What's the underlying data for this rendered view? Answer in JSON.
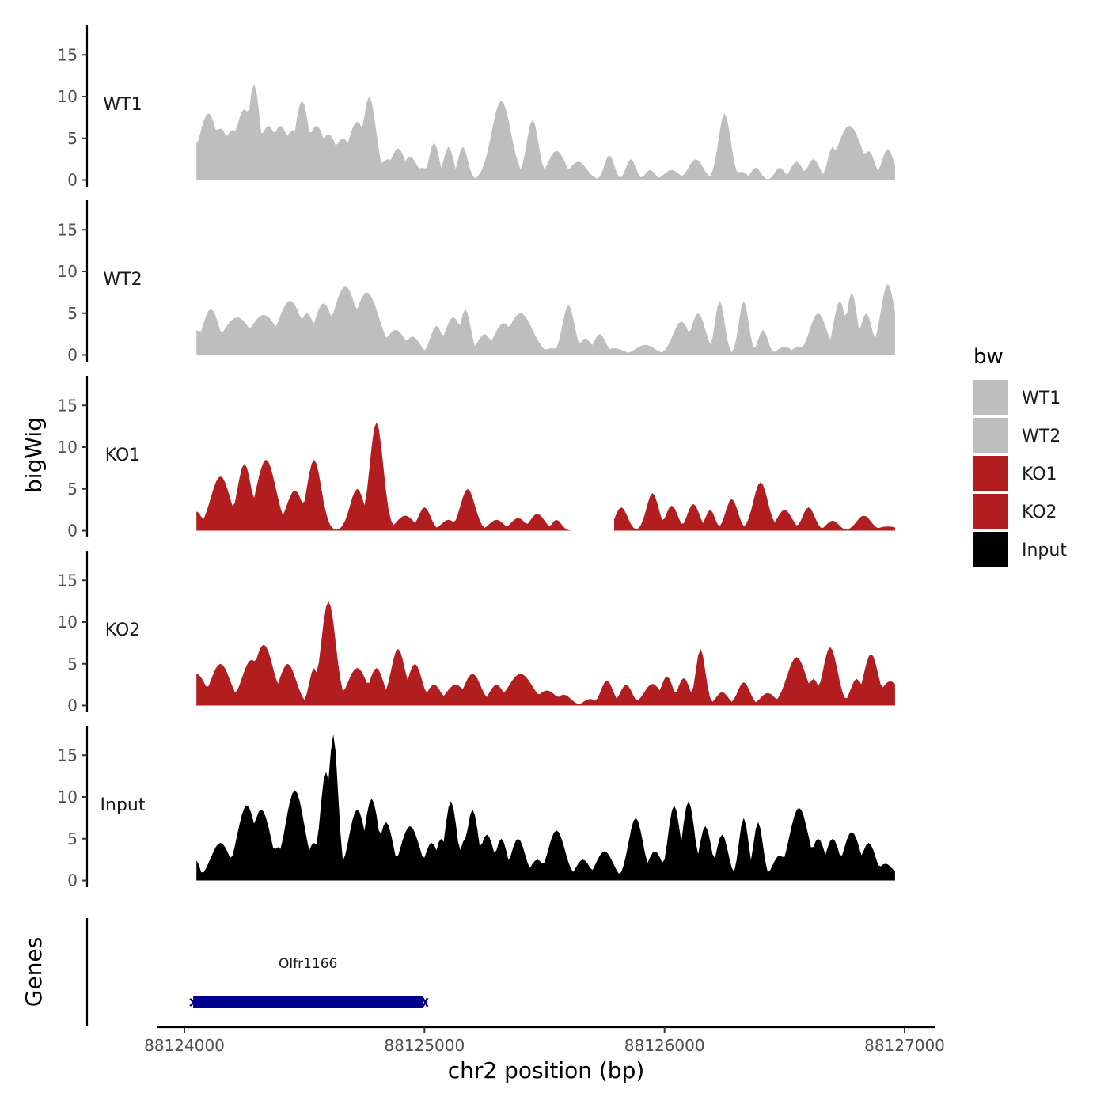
{
  "chart_data": {
    "type": "area",
    "title": "",
    "xlabel": "chr2 position (bp)",
    "ylabel": "bigWig",
    "genes_label": "Genes",
    "legend_title": "bw",
    "xlim": [
      88123890,
      88127000
    ],
    "ylim": [
      0,
      18
    ],
    "x_ticks": [
      88124000,
      88125000,
      88126000,
      88127000
    ],
    "x_tick_labels": [
      "88124000",
      "88125000",
      "88126000",
      "88127000"
    ],
    "y_ticks": [
      0,
      5,
      10,
      15
    ],
    "y_tick_labels": [
      "0",
      "5",
      "10",
      "15"
    ],
    "x_start": 88124050,
    "x_end": 88126960,
    "step": 10,
    "tracks": [
      {
        "name": "WT1",
        "color": "#bebebe",
        "peaks": [
          [
            88124050,
            4.4,
            40
          ],
          [
            88124100,
            8,
            40
          ],
          [
            88124150,
            6.2,
            40
          ],
          [
            88124200,
            6,
            40
          ],
          [
            88124250,
            8.5,
            40
          ],
          [
            88124290,
            11.5,
            25
          ],
          [
            88124350,
            6.5,
            40
          ],
          [
            88124400,
            6.5,
            40
          ],
          [
            88124450,
            6,
            40
          ],
          [
            88124490,
            9.5,
            30
          ],
          [
            88124550,
            6.5,
            40
          ],
          [
            88124600,
            5.5,
            40
          ],
          [
            88124660,
            5,
            40
          ],
          [
            88124720,
            7,
            40
          ],
          [
            88124770,
            10,
            28
          ],
          [
            88124850,
            2.5,
            40
          ],
          [
            88124890,
            3.8,
            30
          ],
          [
            88124940,
            2.8,
            30
          ],
          [
            88124990,
            1.5,
            25
          ],
          [
            88125040,
            4.5,
            20
          ],
          [
            88125100,
            4,
            20
          ],
          [
            88125160,
            4,
            20
          ],
          [
            88125320,
            9.5,
            40
          ],
          [
            88125450,
            7.2,
            25
          ],
          [
            88125550,
            3.5,
            35
          ],
          [
            88125640,
            2.2,
            35
          ],
          [
            88125770,
            3,
            20
          ],
          [
            88125860,
            2.5,
            20
          ],
          [
            88125940,
            1.2,
            20
          ],
          [
            88126030,
            1.2,
            30
          ],
          [
            88126130,
            2.5,
            30
          ],
          [
            88126250,
            8,
            25
          ],
          [
            88126320,
            1,
            25
          ],
          [
            88126380,
            1.5,
            20
          ],
          [
            88126480,
            1.5,
            20
          ],
          [
            88126550,
            2.2,
            25
          ],
          [
            88126620,
            2.5,
            25
          ],
          [
            88126700,
            4,
            20
          ],
          [
            88126770,
            6.5,
            50
          ],
          [
            88126850,
            3.5,
            25
          ],
          [
            88126930,
            3.7,
            25
          ]
        ]
      },
      {
        "name": "WT2",
        "color": "#bebebe",
        "peaks": [
          [
            88124050,
            3,
            30
          ],
          [
            88124110,
            5.5,
            35
          ],
          [
            88124220,
            4.5,
            60
          ],
          [
            88124330,
            4.8,
            60
          ],
          [
            88124440,
            6.5,
            50
          ],
          [
            88124510,
            5,
            35
          ],
          [
            88124580,
            6.2,
            40
          ],
          [
            88124670,
            8.2,
            50
          ],
          [
            88124760,
            7.5,
            50
          ],
          [
            88124880,
            3,
            40
          ],
          [
            88124950,
            2.2,
            30
          ],
          [
            88125050,
            3.5,
            25
          ],
          [
            88125120,
            4.5,
            35
          ],
          [
            88125170,
            5.5,
            22
          ],
          [
            88125250,
            2.5,
            30
          ],
          [
            88125330,
            3.8,
            40
          ],
          [
            88125400,
            5,
            50
          ],
          [
            88125530,
            0.8,
            35
          ],
          [
            88125600,
            6,
            25
          ],
          [
            88125670,
            2,
            25
          ],
          [
            88125730,
            2.5,
            25
          ],
          [
            88125790,
            0.8,
            40
          ],
          [
            88125920,
            1.2,
            40
          ],
          [
            88126070,
            4,
            35
          ],
          [
            88126140,
            5,
            30
          ],
          [
            88126230,
            6.5,
            20
          ],
          [
            88126330,
            6.5,
            20
          ],
          [
            88126410,
            3,
            20
          ],
          [
            88126500,
            1,
            30
          ],
          [
            88126560,
            1,
            30
          ],
          [
            88126640,
            5,
            35
          ],
          [
            88126730,
            6.5,
            25
          ],
          [
            88126780,
            7.5,
            22
          ],
          [
            88126840,
            5,
            25
          ],
          [
            88126930,
            8.5,
            30
          ]
        ]
      },
      {
        "name": "KO1",
        "color": "#b21d1f",
        "gap": [
          88125610,
          88125790
        ],
        "peaks": [
          [
            88124050,
            2.3,
            25
          ],
          [
            88124150,
            6.5,
            40
          ],
          [
            88124250,
            8,
            30
          ],
          [
            88124340,
            8.5,
            40
          ],
          [
            88124460,
            4.8,
            35
          ],
          [
            88124540,
            8.5,
            30
          ],
          [
            88124720,
            5,
            30
          ],
          [
            88124800,
            13,
            28
          ],
          [
            88124920,
            1.8,
            35
          ],
          [
            88125000,
            2.8,
            25
          ],
          [
            88125100,
            1.3,
            30
          ],
          [
            88125180,
            5,
            30
          ],
          [
            88125300,
            1.3,
            30
          ],
          [
            88125390,
            1.5,
            30
          ],
          [
            88125470,
            2,
            30
          ],
          [
            88125550,
            1.3,
            20
          ],
          [
            88125820,
            2.8,
            25
          ],
          [
            88125950,
            4.5,
            25
          ],
          [
            88126030,
            3,
            25
          ],
          [
            88126120,
            3.2,
            25
          ],
          [
            88126190,
            2.5,
            20
          ],
          [
            88126280,
            3.8,
            25
          ],
          [
            88126400,
            5.8,
            30
          ],
          [
            88126500,
            2.5,
            30
          ],
          [
            88126600,
            2.8,
            25
          ],
          [
            88126700,
            1.2,
            25
          ],
          [
            88126830,
            1.8,
            30
          ],
          [
            88126930,
            0.5,
            40
          ]
        ]
      },
      {
        "name": "KO2",
        "color": "#b21d1f",
        "peaks": [
          [
            88124050,
            3.8,
            40
          ],
          [
            88124150,
            5,
            40
          ],
          [
            88124280,
            5.5,
            40
          ],
          [
            88124330,
            7.3,
            40
          ],
          [
            88124430,
            5,
            35
          ],
          [
            88124540,
            4.5,
            20
          ],
          [
            88124600,
            12.5,
            30
          ],
          [
            88124720,
            4.5,
            40
          ],
          [
            88124800,
            4.5,
            30
          ],
          [
            88124890,
            6.8,
            30
          ],
          [
            88124960,
            5,
            30
          ],
          [
            88125040,
            2.5,
            30
          ],
          [
            88125130,
            2.5,
            40
          ],
          [
            88125200,
            3.8,
            35
          ],
          [
            88125300,
            2.5,
            30
          ],
          [
            88125400,
            3.8,
            50
          ],
          [
            88125510,
            1.8,
            40
          ],
          [
            88125580,
            1.3,
            30
          ],
          [
            88125690,
            0.8,
            25
          ],
          [
            88125760,
            3,
            25
          ],
          [
            88125840,
            2.5,
            25
          ],
          [
            88125950,
            2.6,
            35
          ],
          [
            88126010,
            3.5,
            25
          ],
          [
            88126080,
            3.3,
            25
          ],
          [
            88126150,
            6.8,
            20
          ],
          [
            88126240,
            1.6,
            25
          ],
          [
            88126330,
            2.8,
            25
          ],
          [
            88126430,
            1.5,
            30
          ],
          [
            88126550,
            5.8,
            40
          ],
          [
            88126620,
            3.2,
            25
          ],
          [
            88126690,
            7,
            30
          ],
          [
            88126800,
            3.2,
            25
          ],
          [
            88126860,
            6.2,
            30
          ],
          [
            88126940,
            2.9,
            40
          ]
        ]
      },
      {
        "name": "Input",
        "color": "#000000",
        "peaks": [
          [
            88124050,
            2.4,
            15
          ],
          [
            88124150,
            4.5,
            40
          ],
          [
            88124260,
            9,
            40
          ],
          [
            88124320,
            8.5,
            40
          ],
          [
            88124390,
            4,
            30
          ],
          [
            88124460,
            10.8,
            40
          ],
          [
            88124540,
            4.5,
            30
          ],
          [
            88124590,
            13,
            25
          ],
          [
            88124620,
            17.5,
            20
          ],
          [
            88124720,
            8.5,
            35
          ],
          [
            88124780,
            9.8,
            30
          ],
          [
            88124840,
            7,
            30
          ],
          [
            88124940,
            6.5,
            40
          ],
          [
            88125030,
            4.5,
            30
          ],
          [
            88125070,
            5,
            25
          ],
          [
            88125110,
            9.5,
            25
          ],
          [
            88125170,
            5,
            25
          ],
          [
            88125200,
            8.5,
            25
          ],
          [
            88125260,
            5.5,
            30
          ],
          [
            88125320,
            5,
            25
          ],
          [
            88125390,
            5,
            30
          ],
          [
            88125470,
            2.5,
            30
          ],
          [
            88125550,
            6,
            35
          ],
          [
            88125660,
            2.5,
            30
          ],
          [
            88125750,
            3.5,
            35
          ],
          [
            88125880,
            7.5,
            30
          ],
          [
            88125960,
            3.5,
            30
          ],
          [
            88126040,
            9,
            25
          ],
          [
            88126100,
            9.5,
            25
          ],
          [
            88126170,
            6.5,
            25
          ],
          [
            88126240,
            5.5,
            25
          ],
          [
            88126330,
            7.5,
            20
          ],
          [
            88126390,
            7,
            20
          ],
          [
            88126480,
            3,
            30
          ],
          [
            88126560,
            8.7,
            40
          ],
          [
            88126640,
            5,
            30
          ],
          [
            88126700,
            5,
            30
          ],
          [
            88126780,
            5.8,
            35
          ],
          [
            88126850,
            4.5,
            30
          ],
          [
            88126920,
            2,
            35
          ]
        ]
      }
    ],
    "legend_items": [
      {
        "name": "WT1",
        "color": "#bebebe"
      },
      {
        "name": "WT2",
        "color": "#bebebe"
      },
      {
        "name": "KO1",
        "color": "#b21d1f"
      },
      {
        "name": "KO2",
        "color": "#b21d1f"
      },
      {
        "name": "Input",
        "color": "#000000"
      }
    ],
    "genes": [
      {
        "name": "Olfr1166",
        "start": 88124030,
        "end": 88125000,
        "color": "#00008b"
      }
    ]
  }
}
